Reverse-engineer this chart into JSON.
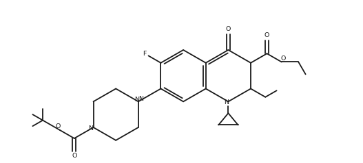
{
  "bg_color": "#ffffff",
  "line_color": "#1a1a1a",
  "lw": 1.3,
  "figsize": [
    5.27,
    2.38
  ],
  "dpi": 100,
  "xlim": [
    0,
    10
  ],
  "ylim": [
    0,
    4.52
  ]
}
